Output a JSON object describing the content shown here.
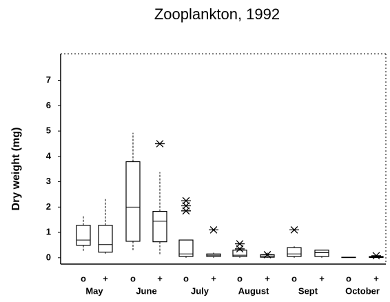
{
  "chart_data": {
    "type": "box",
    "title": "Zooplankton, 1992",
    "y_label": "Dry weight (mg)",
    "categories": [
      "o",
      "+",
      "o",
      "+",
      "o",
      "+",
      "o",
      "+",
      "o",
      "+",
      "o",
      "+"
    ],
    "groups": [
      "May",
      "June",
      "July",
      "August",
      "Sept",
      "October"
    ],
    "ylim": [
      -0.25,
      8.05
    ],
    "yticks": [
      0,
      1,
      2,
      3,
      4,
      5,
      6,
      7
    ],
    "boxes": [
      {
        "min": 0.27,
        "q1": 0.49,
        "median": 0.7,
        "q3": 1.28,
        "max": 1.66,
        "outliers": []
      },
      {
        "min": 0.16,
        "q1": 0.22,
        "median": 0.52,
        "q3": 1.28,
        "max": 2.34,
        "outliers": []
      },
      {
        "min": 0.25,
        "q1": 0.65,
        "median": 2.0,
        "q3": 3.79,
        "max": 4.93,
        "outliers": []
      },
      {
        "min": 0.1,
        "q1": 0.63,
        "median": 1.44,
        "q3": 1.83,
        "max": 3.38,
        "outliers": [
          4.5
        ]
      },
      {
        "min": 0,
        "q1": 0.05,
        "median": 0.15,
        "q3": 0.7,
        "max": 0.7,
        "outliers": [
          2.25,
          2.05,
          1.85
        ]
      },
      {
        "min": 0,
        "q1": 0.05,
        "median": 0.1,
        "q3": 0.15,
        "max": 0.2,
        "outliers": [
          1.1
        ]
      },
      {
        "min": 0,
        "q1": 0.05,
        "median": 0.1,
        "q3": 0.3,
        "max": 0.4,
        "outliers": [
          0.55,
          0.35
        ]
      },
      {
        "min": 0,
        "q1": 0.02,
        "median": 0.07,
        "q3": 0.12,
        "max": 0.2,
        "outliers": [
          0.12
        ]
      },
      {
        "min": 0,
        "q1": 0.05,
        "median": 0.15,
        "q3": 0.4,
        "max": 0.45,
        "outliers": [
          1.1
        ]
      },
      {
        "min": 0,
        "q1": 0.05,
        "median": 0.2,
        "q3": 0.3,
        "max": 0.3,
        "outliers": []
      },
      {
        "min": 0.02,
        "q1": 0.02,
        "median": 0.02,
        "q3": 0.02,
        "max": 0.02,
        "outliers": []
      },
      {
        "min": 0,
        "q1": 0.01,
        "median": 0.03,
        "q3": 0.05,
        "max": 0.05,
        "outliers": [
          0.08
        ]
      }
    ]
  }
}
